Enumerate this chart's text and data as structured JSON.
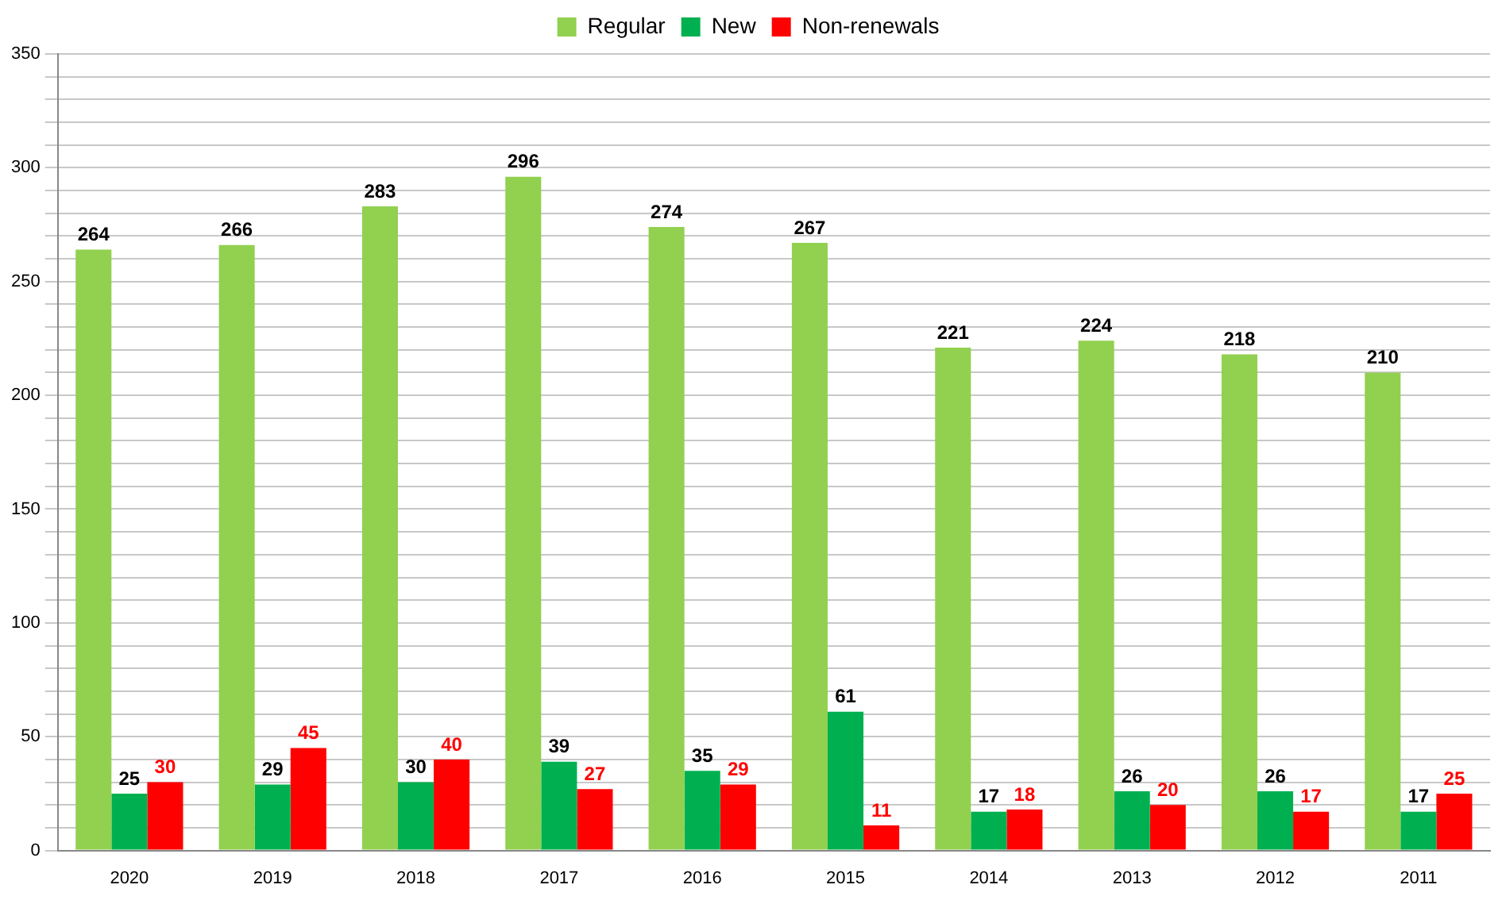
{
  "chart_data": {
    "type": "bar",
    "categories": [
      "2020",
      "2019",
      "2018",
      "2017",
      "2016",
      "2015",
      "2014",
      "2013",
      "2012",
      "2011"
    ],
    "series": [
      {
        "name": "Regular",
        "color": "#92d050",
        "values": [
          264,
          266,
          283,
          296,
          274,
          267,
          221,
          224,
          218,
          210
        ]
      },
      {
        "name": "New",
        "color": "#00b050",
        "values": [
          25,
          29,
          30,
          39,
          35,
          61,
          17,
          26,
          26,
          17
        ]
      },
      {
        "name": "Non-renewals",
        "color": "#ff0000",
        "values": [
          30,
          45,
          40,
          27,
          29,
          11,
          18,
          20,
          17,
          25
        ]
      }
    ],
    "ylim": [
      0,
      350
    ],
    "yticks": [
      0,
      {
        "value": 10,
        "label": null
      },
      {
        "value": 20,
        "label": null
      },
      {
        "value": 30,
        "label": null
      },
      {
        "value": 40,
        "label": null
      },
      50,
      {
        "value": 60,
        "label": null
      },
      {
        "value": 70,
        "label": null
      },
      {
        "value": 80,
        "label": null
      },
      {
        "value": 90,
        "label": null
      },
      100,
      {
        "value": 110,
        "label": null
      },
      {
        "value": 120,
        "label": null
      },
      {
        "value": 130,
        "label": null
      },
      {
        "value": 140,
        "label": null
      },
      150,
      {
        "value": 160,
        "label": null
      },
      {
        "value": 170,
        "label": null
      },
      {
        "value": 180,
        "label": null
      },
      {
        "value": 190,
        "label": null
      },
      200,
      {
        "value": 210,
        "label": null
      },
      {
        "value": 220,
        "label": null
      },
      {
        "value": 230,
        "label": null
      },
      {
        "value": 240,
        "label": null
      },
      250,
      {
        "value": 260,
        "label": null
      },
      {
        "value": 270,
        "label": null
      },
      {
        "value": 280,
        "label": null
      },
      {
        "value": 290,
        "label": null
      },
      300,
      {
        "value": 310,
        "label": null
      },
      {
        "value": 320,
        "label": null
      },
      {
        "value": 330,
        "label": null
      },
      {
        "value": 340,
        "label": null
      },
      350
    ],
    "grid": "y",
    "legend": "top",
    "data_labels": true
  }
}
